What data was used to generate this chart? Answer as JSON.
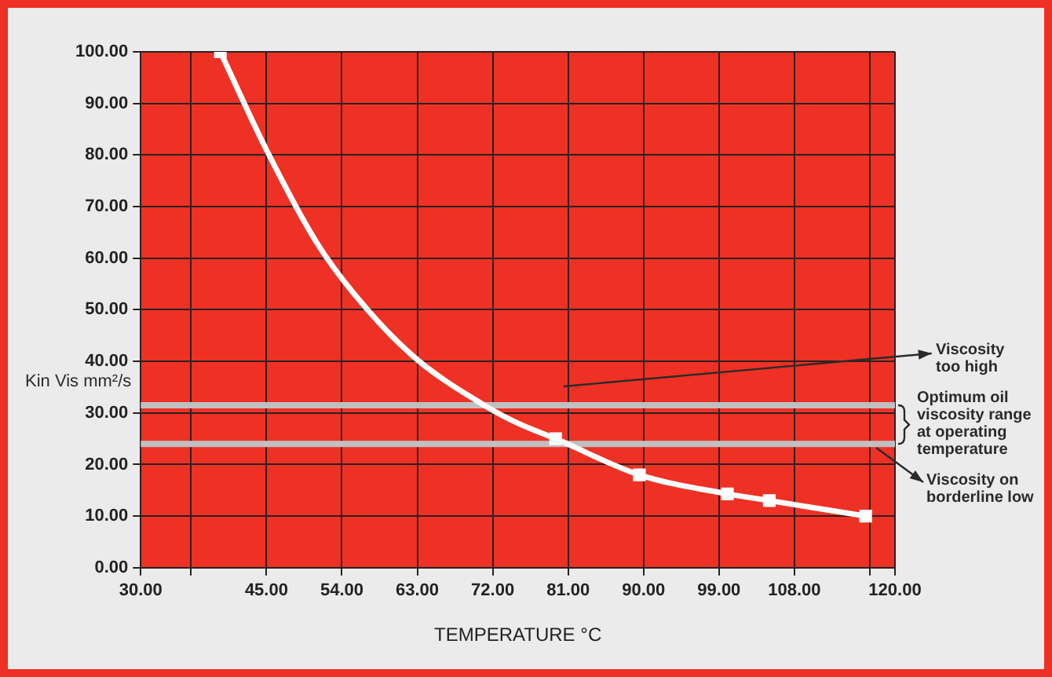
{
  "chart_data": {
    "type": "line",
    "xlabel": "TEMPERATURE °C",
    "ylabel": "Kin Vis mm²/s",
    "xlim": [
      30,
      120
    ],
    "ylim": [
      0,
      100
    ],
    "xticks": [
      {
        "value": 30,
        "label": "30.00"
      },
      {
        "value": 36,
        "label": null
      },
      {
        "value": 45,
        "label": "45.00"
      },
      {
        "value": 54,
        "label": "54.00"
      },
      {
        "value": 63,
        "label": "63.00"
      },
      {
        "value": 72,
        "label": "72.00"
      },
      {
        "value": 81,
        "label": "81.00"
      },
      {
        "value": 90,
        "label": "90.00"
      },
      {
        "value": 99,
        "label": "99.00"
      },
      {
        "value": 108,
        "label": "108.00"
      },
      {
        "value": 117,
        "label": null
      },
      {
        "value": 120,
        "label": "120.00"
      }
    ],
    "yticks": [
      {
        "value": 0,
        "label": "0.00"
      },
      {
        "value": 10,
        "label": "10.00"
      },
      {
        "value": 20,
        "label": "20.00"
      },
      {
        "value": 30,
        "label": "30.00"
      },
      {
        "value": 40,
        "label": "40.00"
      },
      {
        "value": 50,
        "label": "50.00"
      },
      {
        "value": 60,
        "label": "60.00"
      },
      {
        "value": 70,
        "label": "70.00"
      },
      {
        "value": 80,
        "label": "80.00"
      },
      {
        "value": 90,
        "label": "90.00"
      },
      {
        "value": 100,
        "label": "100.00"
      }
    ],
    "grid": true,
    "legend": false,
    "series": [
      {
        "type": "line",
        "marker": "none",
        "color": "#ffffff",
        "x": [
          39.5,
          45,
          51,
          55.5,
          62.5,
          71.5,
          75,
          79.5,
          89.5,
          100,
          105,
          116.5
        ],
        "values": [
          100,
          81,
          63,
          53,
          41,
          31,
          28,
          25,
          18,
          14.3,
          13,
          10
        ]
      },
      {
        "type": "scatter",
        "marker": "square",
        "color": "#ffffff",
        "x": [
          39.5,
          79.5,
          89.5,
          100,
          105,
          116.5
        ],
        "values": [
          100,
          25,
          18,
          14.3,
          13,
          10
        ]
      }
    ],
    "ref_lines": [
      {
        "axis": "y",
        "value": 31.5,
        "color": "#c0c0c0"
      },
      {
        "axis": "y",
        "value": 24,
        "color": "#c0c0c0"
      }
    ],
    "annotations": [
      "Viscosity too high",
      "Optimum oil viscosity range at operating temperature",
      "Viscosity on borderline low"
    ]
  }
}
